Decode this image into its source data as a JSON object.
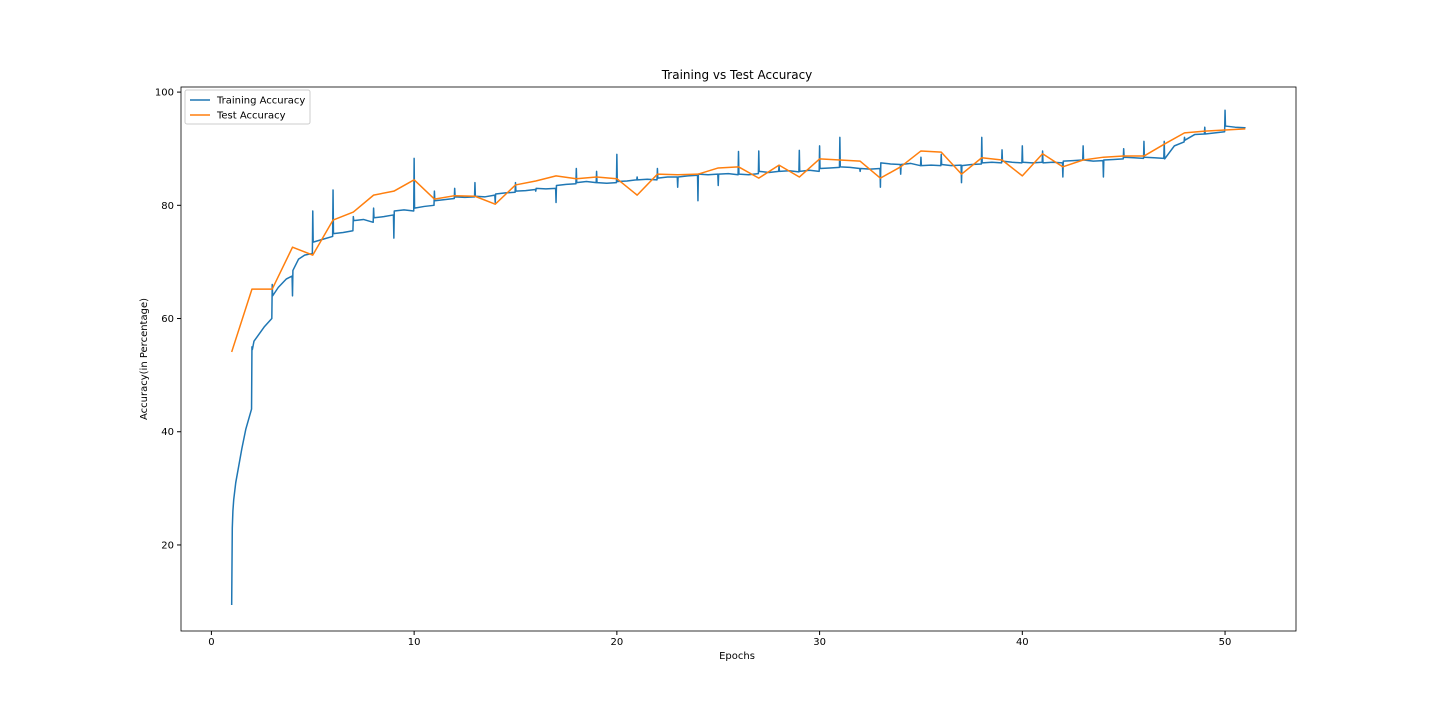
{
  "chart_data": {
    "type": "line",
    "title": "Training vs Test Accuracy",
    "x_label": "Epochs",
    "y_label": "Accuracy(in Percentage)",
    "xlim": [
      -1.5,
      53.5
    ],
    "ylim": [
      4.8,
      100.9
    ],
    "xticks": [
      0,
      10,
      20,
      30,
      40,
      50
    ],
    "yticks": [
      20,
      40,
      60,
      80,
      100
    ],
    "grid": false,
    "legend": "upper left",
    "series": [
      {
        "name": "Training Accuracy",
        "color": "#1f77b4",
        "x": [
          1,
          1.01,
          1.03,
          1.06,
          1.1,
          1.2,
          1.35,
          1.5,
          1.7,
          1.98,
          2,
          2.02,
          2.1,
          2.3,
          2.6,
          2.98,
          3,
          3.02,
          3.3,
          3.7,
          3.98,
          4,
          4.02,
          4.3,
          4.6,
          4.98,
          5,
          5.02,
          5.5,
          5.98,
          6,
          6.02,
          6.5,
          6.98,
          7,
          7.02,
          7.5,
          7.98,
          8,
          8.02,
          8.5,
          8.98,
          9,
          9.02,
          9.5,
          9.98,
          10,
          10.02,
          10.5,
          10.98,
          11,
          11.02,
          11.5,
          11.98,
          12,
          12.02,
          12.5,
          12.98,
          13,
          13.02,
          13.5,
          13.98,
          14,
          14.02,
          14.5,
          14.98,
          15,
          15.02,
          15.5,
          15.98,
          16,
          16.02,
          16.5,
          16.98,
          17,
          17.02,
          17.5,
          17.98,
          18,
          18.02,
          18.5,
          18.98,
          19,
          19.02,
          19.5,
          19.98,
          20,
          20.02,
          20.5,
          20.98,
          21,
          21.02,
          21.5,
          21.98,
          22,
          22.02,
          22.5,
          22.98,
          23,
          23.02,
          23.5,
          23.98,
          24,
          24.02,
          24.5,
          24.98,
          25,
          25.02,
          25.5,
          25.98,
          26,
          26.02,
          26.5,
          26.98,
          27,
          27.02,
          27.5,
          27.98,
          28,
          28.02,
          28.5,
          28.98,
          29,
          29.02,
          29.5,
          29.98,
          30,
          30.02,
          30.5,
          30.98,
          31,
          31.02,
          31.5,
          31.98,
          32,
          32.02,
          32.5,
          32.98,
          33,
          33.02,
          33.5,
          33.98,
          34,
          34.02,
          34.5,
          34.98,
          35,
          35.02,
          35.5,
          35.98,
          36,
          36.02,
          36.5,
          36.98,
          37,
          37.02,
          37.5,
          37.98,
          38,
          38.02,
          38.5,
          38.98,
          39,
          39.02,
          39.5,
          39.98,
          40,
          40.02,
          40.5,
          40.98,
          41,
          41.02,
          41.5,
          41.98,
          42,
          42.02,
          42.5,
          42.98,
          43,
          43.02,
          43.5,
          43.98,
          44,
          44.02,
          44.5,
          44.98,
          45,
          45.02,
          45.5,
          45.98,
          46,
          46.02,
          46.5,
          46.98,
          47,
          47.02,
          47.5,
          47.98,
          48,
          48.02,
          48.5,
          48.98,
          49,
          49.02,
          49.5,
          49.98,
          50,
          50.02,
          50.5,
          50.98,
          51
        ],
        "values": [
          9.4,
          14,
          23,
          26,
          28,
          31,
          34,
          37,
          40.5,
          44,
          55,
          54.5,
          56,
          57,
          58.5,
          60,
          66,
          64,
          65.5,
          67,
          67.5,
          64,
          68.5,
          70.5,
          71.2,
          71.5,
          79,
          73.5,
          74,
          74.5,
          82.7,
          75,
          75.2,
          75.5,
          78,
          77.3,
          77.5,
          77,
          79.5,
          77.8,
          78,
          78.3,
          74.2,
          79,
          79.2,
          79,
          88.3,
          79.5,
          79.8,
          80,
          82.5,
          80.8,
          81,
          81.2,
          83,
          81.5,
          81.4,
          81.5,
          84,
          81.6,
          81.5,
          81.8,
          80.5,
          82,
          82.2,
          82.3,
          84,
          82.5,
          82.6,
          82.8,
          82.5,
          83,
          82.9,
          83,
          80.5,
          83.5,
          83.7,
          83.8,
          86.5,
          84,
          84.2,
          84,
          86,
          84,
          83.9,
          84,
          89,
          84.2,
          84.3,
          84.5,
          85,
          84.5,
          84.6,
          84.5,
          86.5,
          84.8,
          85,
          85,
          83.2,
          85,
          85.2,
          85.3,
          80.8,
          85.5,
          85.4,
          85.5,
          83.5,
          85.5,
          85.6,
          85.4,
          89.5,
          85.5,
          85.4,
          85.6,
          89.6,
          86,
          85.8,
          86,
          87,
          86,
          86.1,
          85.9,
          89.7,
          86,
          86.2,
          86,
          90.5,
          86.5,
          86.6,
          86.7,
          92,
          86.8,
          86.7,
          86.5,
          86,
          86.5,
          86.4,
          86.5,
          83.2,
          87.5,
          87.3,
          87.2,
          85.5,
          87.2,
          87.4,
          87,
          88.5,
          87,
          87.1,
          87,
          89,
          87.2,
          87,
          87.1,
          84,
          87,
          87.2,
          87.3,
          92,
          87.5,
          87.6,
          87.5,
          89.8,
          87.8,
          87.6,
          87.5,
          90.5,
          87.6,
          87.5,
          87.6,
          89.6,
          87.5,
          87.6,
          87.5,
          85,
          87.8,
          87.9,
          88,
          90.5,
          88,
          87.8,
          87.9,
          85,
          88,
          88.1,
          88.2,
          90,
          88.5,
          88.4,
          88.3,
          91.3,
          88.5,
          88.4,
          88.3,
          91.3,
          88.2,
          90.5,
          91.2,
          92,
          91.5,
          92.5,
          92.6,
          93.8,
          92.6,
          92.8,
          93,
          96.8,
          94,
          93.8,
          93.7,
          93.6
        ]
      },
      {
        "name": "Test Accuracy",
        "color": "#ff7f0e",
        "x": [
          1,
          2,
          3,
          4,
          5,
          6,
          7,
          8,
          9,
          10,
          11,
          12,
          13,
          14,
          15,
          16,
          17,
          18,
          19,
          20,
          21,
          22,
          23,
          24,
          25,
          26,
          27,
          28,
          29,
          30,
          31,
          32,
          33,
          34,
          35,
          36,
          37,
          38,
          39,
          40,
          41,
          42,
          43,
          44,
          45,
          46,
          47,
          48,
          49,
          50,
          51
        ],
        "values": [
          54.1,
          65.2,
          65.2,
          72.6,
          71.2,
          77.4,
          78.8,
          81.8,
          82.5,
          84.5,
          81.1,
          81.7,
          81.6,
          80.2,
          83.6,
          84.3,
          85.2,
          84.7,
          85.0,
          84.7,
          81.8,
          85.5,
          85.4,
          85.5,
          86.6,
          86.8,
          84.8,
          87.1,
          85.0,
          88.2,
          88.0,
          87.8,
          84.8,
          86.8,
          89.6,
          89.4,
          85.5,
          88.4,
          88.0,
          85.2,
          89.1,
          86.8,
          88.0,
          88.5,
          88.7,
          88.7,
          90.8,
          92.8,
          93.1,
          93.3,
          93.5
        ]
      }
    ]
  }
}
